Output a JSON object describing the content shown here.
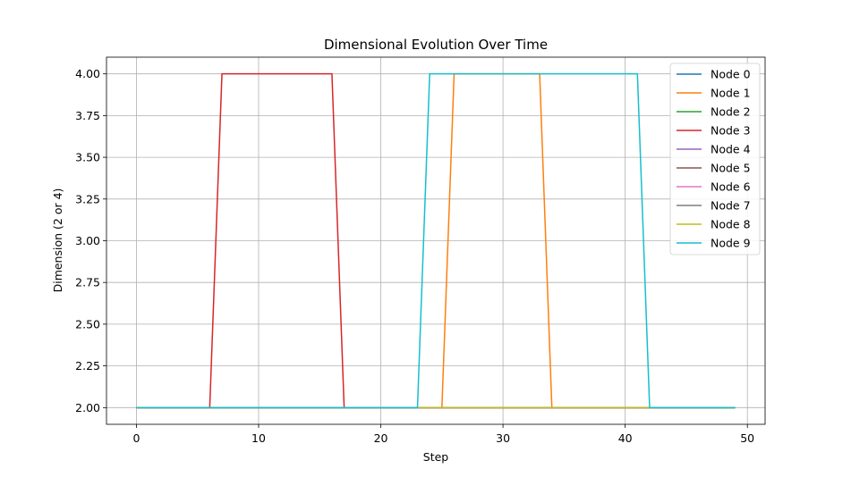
{
  "chart_data": {
    "type": "line",
    "title": "Dimensional Evolution Over Time",
    "xlabel": "Step",
    "ylabel": "Dimension (2 or 4)",
    "xlim": [
      -2.45,
      51.45
    ],
    "ylim": [
      1.9,
      4.1
    ],
    "xticks": [
      0,
      10,
      20,
      30,
      40,
      50
    ],
    "yticks": [
      2.0,
      2.25,
      2.5,
      2.75,
      3.0,
      3.25,
      3.5,
      3.75,
      4.0
    ],
    "grid": true,
    "legend_position": "top-right",
    "x": [
      0,
      1,
      2,
      3,
      4,
      5,
      6,
      7,
      8,
      9,
      10,
      11,
      12,
      13,
      14,
      15,
      16,
      17,
      18,
      19,
      20,
      21,
      22,
      23,
      24,
      25,
      26,
      27,
      28,
      29,
      30,
      31,
      32,
      33,
      34,
      35,
      36,
      37,
      38,
      39,
      40,
      41,
      42,
      43,
      44,
      45,
      46,
      47,
      48,
      49
    ],
    "series": [
      {
        "name": "Node 0",
        "color": "#1f77b4",
        "values": [
          2,
          2,
          2,
          2,
          2,
          2,
          2,
          2,
          2,
          2,
          2,
          2,
          2,
          2,
          2,
          2,
          2,
          2,
          2,
          2,
          2,
          2,
          2,
          2,
          2,
          2,
          2,
          2,
          2,
          2,
          2,
          2,
          2,
          2,
          2,
          2,
          2,
          2,
          2,
          2,
          2,
          2,
          2,
          2,
          2,
          2,
          2,
          2,
          2,
          2
        ]
      },
      {
        "name": "Node 1",
        "color": "#ff7f0e",
        "values": [
          2,
          2,
          2,
          2,
          2,
          2,
          2,
          2,
          2,
          2,
          2,
          2,
          2,
          2,
          2,
          2,
          2,
          2,
          2,
          2,
          2,
          2,
          2,
          2,
          2,
          2,
          4,
          4,
          4,
          4,
          4,
          4,
          4,
          4,
          2,
          2,
          2,
          2,
          2,
          2,
          2,
          2,
          2,
          2,
          2,
          2,
          2,
          2,
          2,
          2
        ]
      },
      {
        "name": "Node 2",
        "color": "#2ca02c",
        "values": [
          2,
          2,
          2,
          2,
          2,
          2,
          2,
          2,
          2,
          2,
          2,
          2,
          2,
          2,
          2,
          2,
          2,
          2,
          2,
          2,
          2,
          2,
          2,
          2,
          2,
          2,
          2,
          2,
          2,
          2,
          2,
          2,
          2,
          2,
          2,
          2,
          2,
          2,
          2,
          2,
          2,
          2,
          2,
          2,
          2,
          2,
          2,
          2,
          2,
          2
        ]
      },
      {
        "name": "Node 3",
        "color": "#d62728",
        "values": [
          2,
          2,
          2,
          2,
          2,
          2,
          2,
          4,
          4,
          4,
          4,
          4,
          4,
          4,
          4,
          4,
          4,
          2,
          2,
          2,
          2,
          2,
          2,
          2,
          2,
          2,
          2,
          2,
          2,
          2,
          2,
          2,
          2,
          2,
          2,
          2,
          2,
          2,
          2,
          2,
          2,
          2,
          2,
          2,
          2,
          2,
          2,
          2,
          2,
          2
        ]
      },
      {
        "name": "Node 4",
        "color": "#9467bd",
        "values": [
          2,
          2,
          2,
          2,
          2,
          2,
          2,
          2,
          2,
          2,
          2,
          2,
          2,
          2,
          2,
          2,
          2,
          2,
          2,
          2,
          2,
          2,
          2,
          2,
          2,
          2,
          2,
          2,
          2,
          2,
          2,
          2,
          2,
          2,
          2,
          2,
          2,
          2,
          2,
          2,
          2,
          2,
          2,
          2,
          2,
          2,
          2,
          2,
          2,
          2
        ]
      },
      {
        "name": "Node 5",
        "color": "#8c564b",
        "values": [
          2,
          2,
          2,
          2,
          2,
          2,
          2,
          2,
          2,
          2,
          2,
          2,
          2,
          2,
          2,
          2,
          2,
          2,
          2,
          2,
          2,
          2,
          2,
          2,
          2,
          2,
          2,
          2,
          2,
          2,
          2,
          2,
          2,
          2,
          2,
          2,
          2,
          2,
          2,
          2,
          2,
          2,
          2,
          2,
          2,
          2,
          2,
          2,
          2,
          2
        ]
      },
      {
        "name": "Node 6",
        "color": "#e377c2",
        "values": [
          2,
          2,
          2,
          2,
          2,
          2,
          2,
          2,
          2,
          2,
          2,
          2,
          2,
          2,
          2,
          2,
          2,
          2,
          2,
          2,
          2,
          2,
          2,
          2,
          2,
          2,
          2,
          2,
          2,
          2,
          2,
          2,
          2,
          2,
          2,
          2,
          2,
          2,
          2,
          2,
          2,
          2,
          2,
          2,
          2,
          2,
          2,
          2,
          2,
          2
        ]
      },
      {
        "name": "Node 7",
        "color": "#7f7f7f",
        "values": [
          2,
          2,
          2,
          2,
          2,
          2,
          2,
          2,
          2,
          2,
          2,
          2,
          2,
          2,
          2,
          2,
          2,
          2,
          2,
          2,
          2,
          2,
          2,
          2,
          2,
          2,
          2,
          2,
          2,
          2,
          2,
          2,
          2,
          2,
          2,
          2,
          2,
          2,
          2,
          2,
          2,
          2,
          2,
          2,
          2,
          2,
          2,
          2,
          2,
          2
        ]
      },
      {
        "name": "Node 8",
        "color": "#bcbd22",
        "values": [
          2,
          2,
          2,
          2,
          2,
          2,
          2,
          2,
          2,
          2,
          2,
          2,
          2,
          2,
          2,
          2,
          2,
          2,
          2,
          2,
          2,
          2,
          2,
          2,
          2,
          2,
          2,
          2,
          2,
          2,
          2,
          2,
          2,
          2,
          2,
          2,
          2,
          2,
          2,
          2,
          2,
          2,
          2,
          2,
          2,
          2,
          2,
          2,
          2,
          2
        ]
      },
      {
        "name": "Node 9",
        "color": "#17becf",
        "values": [
          2,
          2,
          2,
          2,
          2,
          2,
          2,
          2,
          2,
          2,
          2,
          2,
          2,
          2,
          2,
          2,
          2,
          2,
          2,
          2,
          2,
          2,
          2,
          2,
          4,
          4,
          4,
          4,
          4,
          4,
          4,
          4,
          4,
          4,
          4,
          4,
          4,
          4,
          4,
          4,
          4,
          4,
          2,
          2,
          2,
          2,
          2,
          2,
          2,
          2
        ]
      }
    ]
  }
}
